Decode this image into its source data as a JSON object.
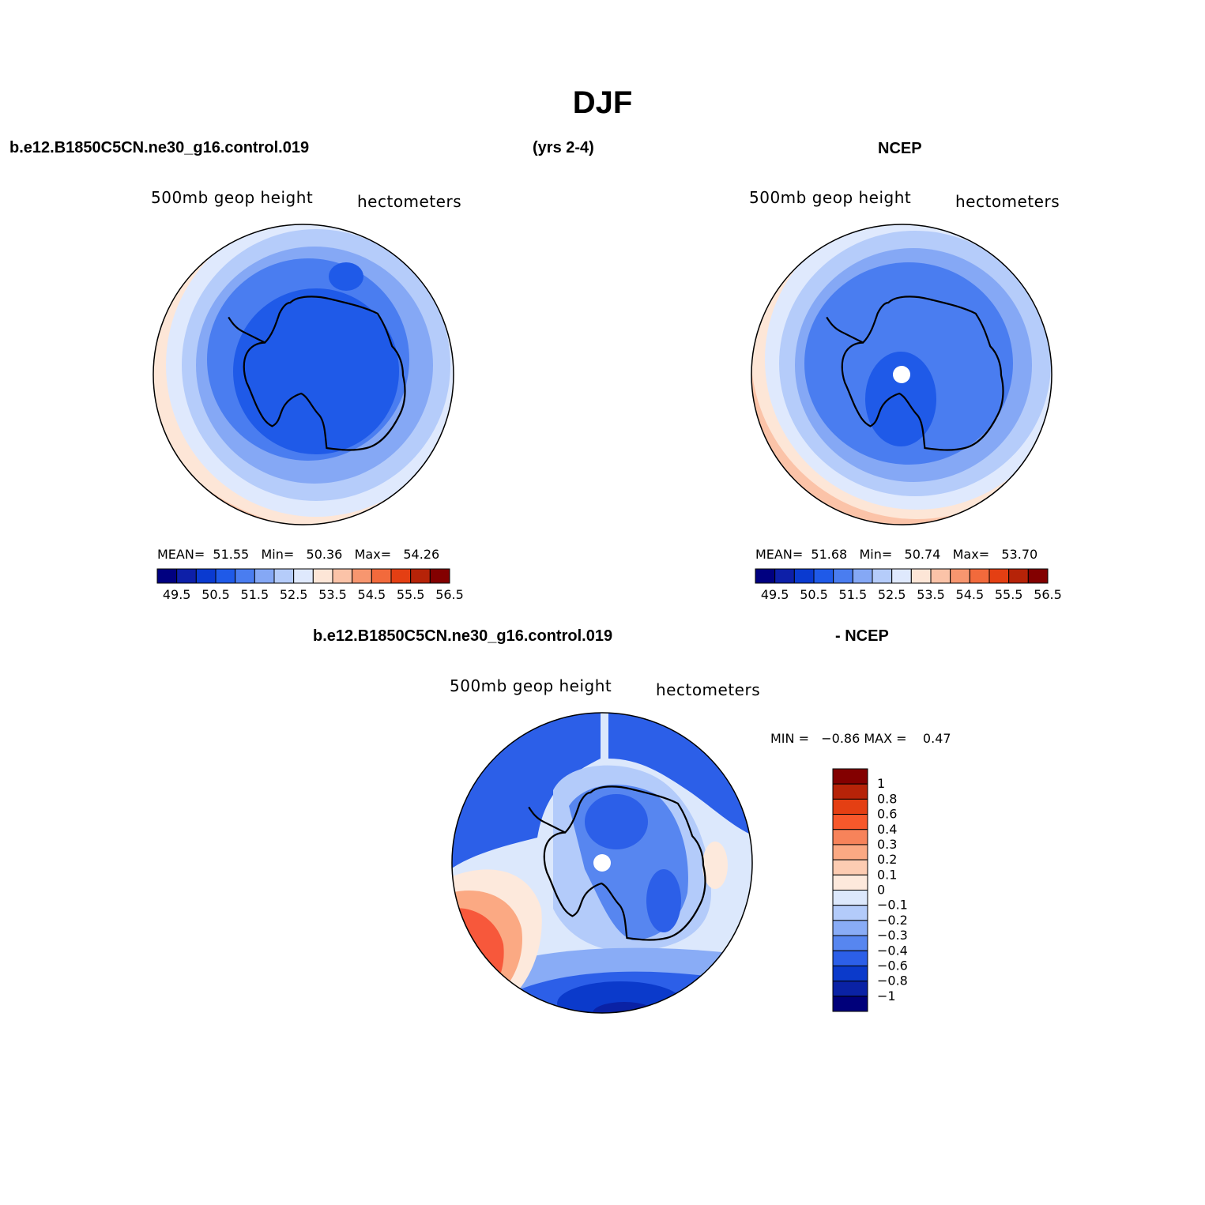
{
  "main_title": "DJF",
  "header": {
    "case_name": "b.e12.B1850C5CN.ne30_g16.control.019",
    "years": "(yrs 2-4)",
    "obs_name": "NCEP"
  },
  "panels": {
    "model": {
      "left_label": "500mb geop height",
      "right_label": "hectometers",
      "stats": {
        "mean_label": "MEAN=",
        "mean": "51.55",
        "min_label": "Min=",
        "min": "50.36",
        "max_label": "Max=",
        "max": "54.26"
      }
    },
    "obs": {
      "left_label": "500mb geop height",
      "right_label": "hectometers",
      "stats": {
        "mean_label": "MEAN=",
        "mean": "51.68",
        "min_label": "Min=",
        "min": "50.74",
        "max_label": "Max=",
        "max": "53.70"
      }
    },
    "diff": {
      "title_left": "b.e12.B1850C5CN.ne30_g16.control.019",
      "title_right": "- NCEP",
      "left_label": "500mb geop height",
      "right_label": "hectometers",
      "stats": {
        "min_label": "MIN =",
        "min": "−0.86",
        "max_label": "MAX =",
        "max": "0.47"
      }
    }
  },
  "colorbar_abs": {
    "tick_labels": [
      "49.5",
      "50.5",
      "51.5",
      "52.5",
      "53.5",
      "54.5",
      "55.5",
      "56.5"
    ],
    "colors": [
      "#000080",
      "#0d1fa8",
      "#0a3ad0",
      "#1f5ae8",
      "#4a7df0",
      "#85a8f5",
      "#b5ccfa",
      "#dfe9fd",
      "#fde6d7",
      "#fbc3a8",
      "#f7966f",
      "#f26a3c",
      "#e43f13",
      "#b62308",
      "#830000"
    ]
  },
  "colorbar_diff": {
    "labels": [
      "1",
      "0.8",
      "0.6",
      "0.4",
      "0.3",
      "0.2",
      "0.1",
      "0",
      "−0.1",
      "−0.2",
      "−0.3",
      "−0.4",
      "−0.6",
      "−0.8",
      "−1"
    ],
    "colors": [
      "#830000",
      "#b62308",
      "#e43f13",
      "#f7582b",
      "#f7835a",
      "#fba983",
      "#fdccb2",
      "#fde9dc",
      "#dce8fc",
      "#b3cbfa",
      "#89acf6",
      "#5786f0",
      "#2c5fe8",
      "#0b3acb",
      "#0a22a5",
      "#00007a"
    ]
  },
  "map_colors": {
    "ocean_far": "#fde6d7",
    "level_1": "#b5ccfa",
    "level_2": "#85a8f5",
    "level_3": "#4a7df0",
    "level_4": "#1f5ae8",
    "warm_1": "#fbc3a8",
    "warm_2": "#f7966f",
    "warm_3": "#f26a3c",
    "coast": "#000000"
  }
}
